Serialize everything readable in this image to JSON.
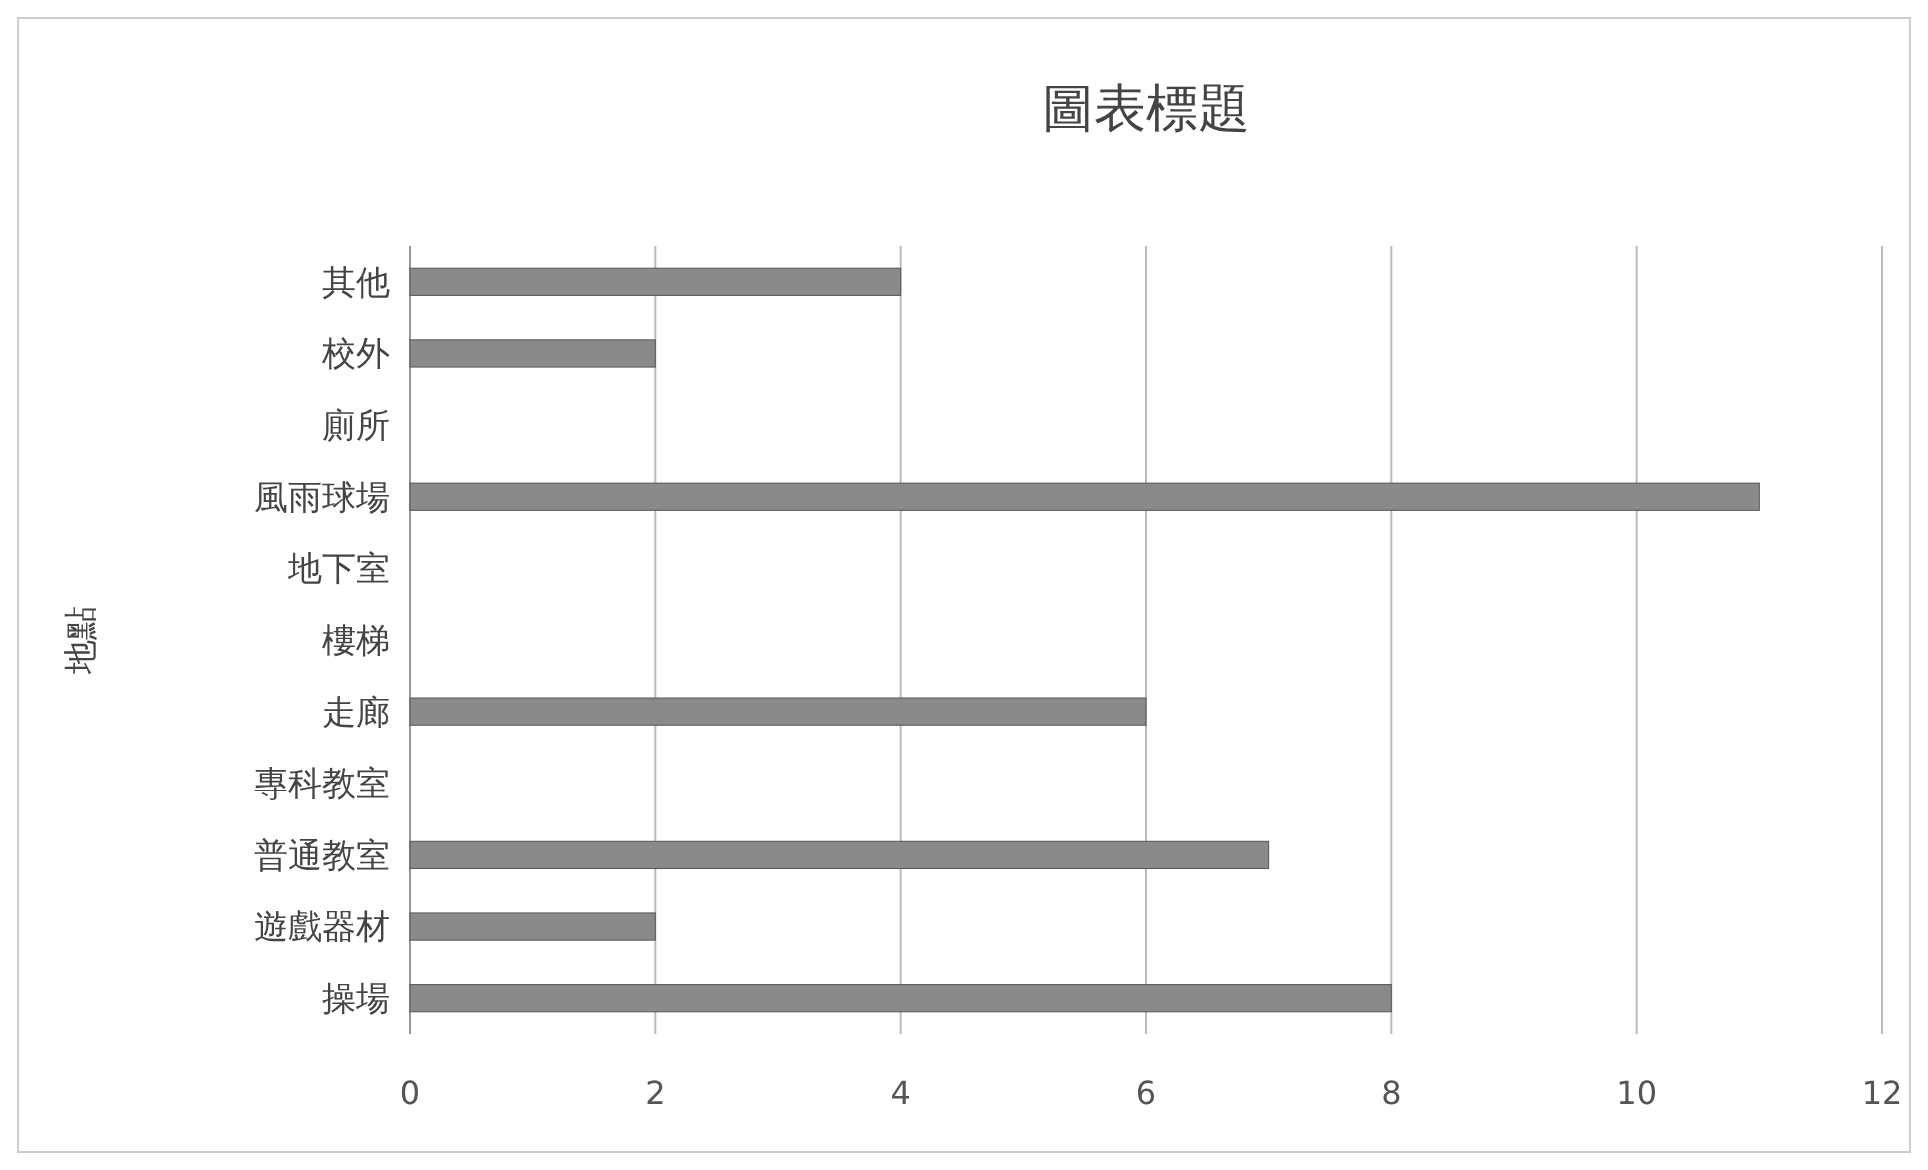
{
  "chart_data": {
    "type": "bar",
    "orientation": "horizontal",
    "title": "圖表標題",
    "ylabel": "地點",
    "categories": [
      "其他",
      "校外",
      "廁所",
      "風雨球場",
      "地下室",
      "樓梯",
      "走廊",
      "專科教室",
      "普通教室",
      "遊戲器材",
      "操場"
    ],
    "values": [
      4,
      2,
      0,
      11,
      0,
      0,
      6,
      0,
      7,
      2,
      8
    ],
    "color": "#8a8a8a",
    "xlim": [
      0,
      12
    ],
    "xticks": [
      0,
      2,
      4,
      6,
      8,
      10,
      12
    ],
    "grid": "x"
  }
}
